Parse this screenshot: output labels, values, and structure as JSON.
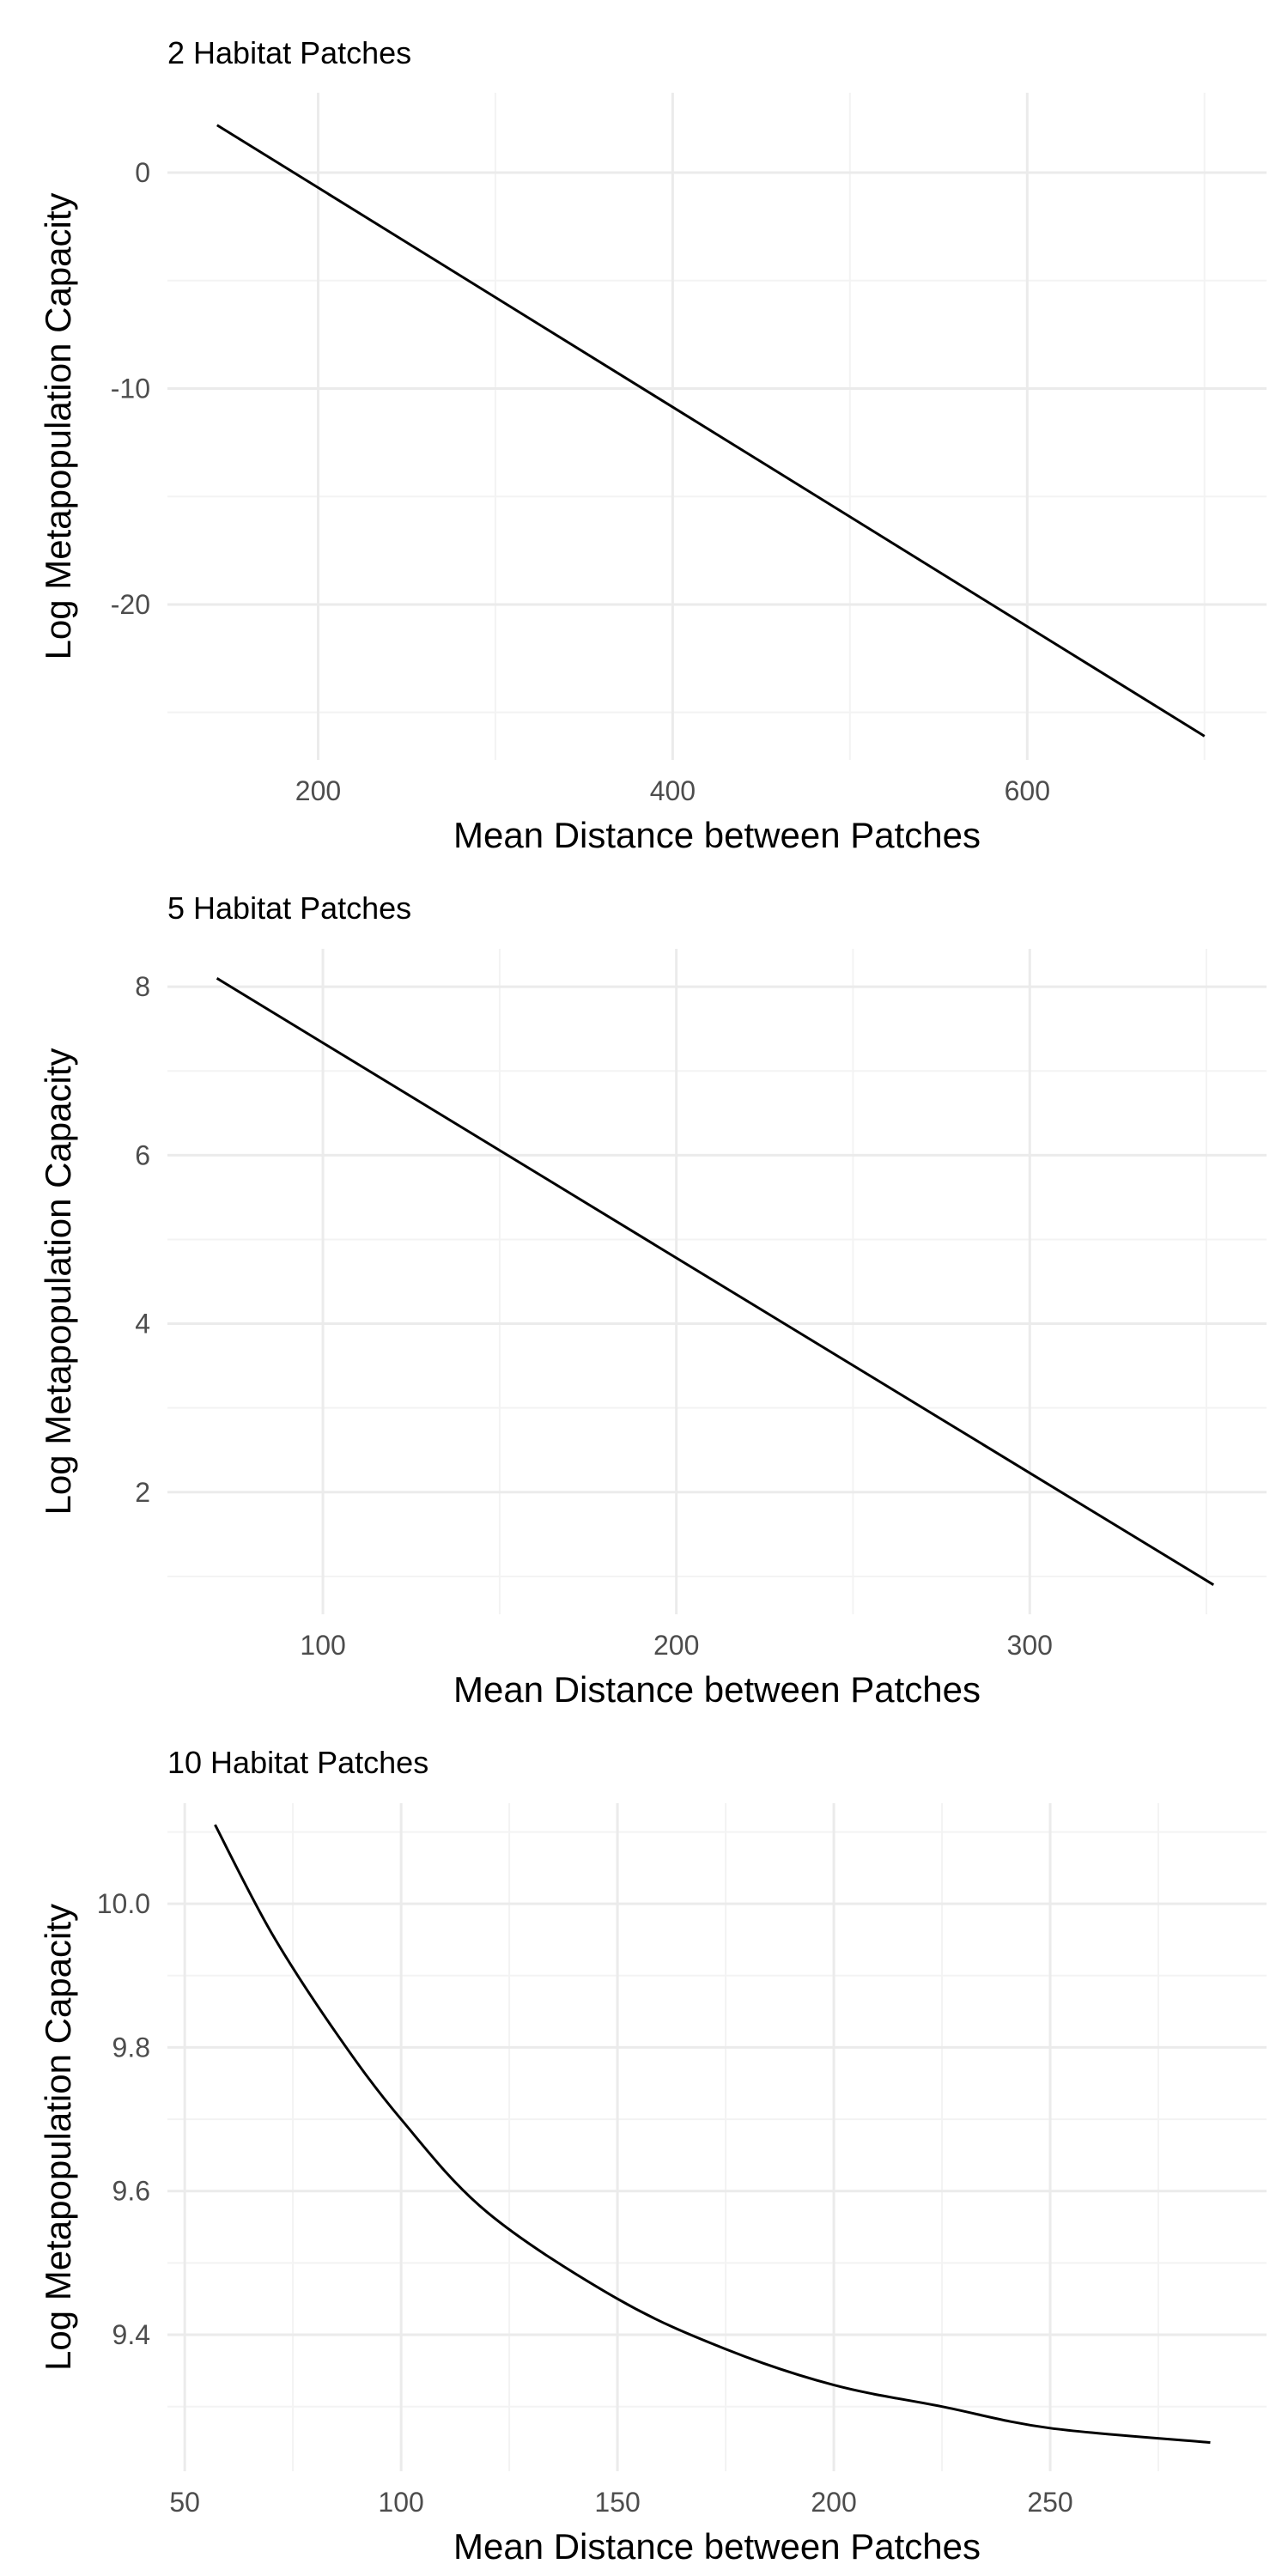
{
  "chart_data": [
    {
      "type": "line",
      "title": "2 Habitat Patches",
      "xlabel": "Mean Distance between Patches",
      "ylabel": "Log Metapopulation Capacity",
      "xlim": [
        115,
        735
      ],
      "ylim": [
        -27.2,
        3.7
      ],
      "xticks": [
        200,
        400,
        600
      ],
      "xtick_labels": [
        "200",
        "400",
        "600"
      ],
      "yticks": [
        -20,
        -10,
        0
      ],
      "ytick_labels": [
        "-20",
        "-10",
        "0"
      ],
      "grid": true,
      "series": [
        {
          "x": [
            143,
            700
          ],
          "y": [
            2.2,
            -26.1
          ]
        }
      ]
    },
    {
      "type": "line",
      "title": "5 Habitat Patches",
      "xlabel": "Mean Distance between Patches",
      "ylabel": "Log Metapopulation Capacity",
      "xlim": [
        56,
        367
      ],
      "ylim": [
        0.55,
        8.45
      ],
      "xticks": [
        100,
        200,
        300
      ],
      "xtick_labels": [
        "100",
        "200",
        "300"
      ],
      "yticks": [
        2,
        4,
        6,
        8
      ],
      "ytick_labels": [
        "2",
        "4",
        "6",
        "8"
      ],
      "grid": true,
      "series": [
        {
          "x": [
            70,
            352
          ],
          "y": [
            8.1,
            0.9
          ]
        }
      ]
    },
    {
      "type": "line",
      "title": "10 Habitat Patches",
      "xlabel": "Mean Distance between Patches",
      "ylabel": "Log Metapopulation Capacity",
      "xlim": [
        46,
        300
      ],
      "ylim": [
        9.21,
        10.14
      ],
      "xticks": [
        50,
        100,
        150,
        200,
        250
      ],
      "xtick_labels": [
        "50",
        "100",
        "150",
        "200",
        "250"
      ],
      "yticks": [
        9.4,
        9.6,
        9.8,
        10.0
      ],
      "ytick_labels": [
        "9.4",
        "9.6",
        "9.8",
        "10.0"
      ],
      "grid": true,
      "series": [
        {
          "x": [
            57,
            70,
            85,
            100,
            120,
            150,
            175,
            200,
            225,
            250,
            287
          ],
          "y": [
            10.11,
            9.96,
            9.82,
            9.7,
            9.57,
            9.45,
            9.38,
            9.33,
            9.3,
            9.27,
            9.25
          ]
        }
      ]
    }
  ]
}
